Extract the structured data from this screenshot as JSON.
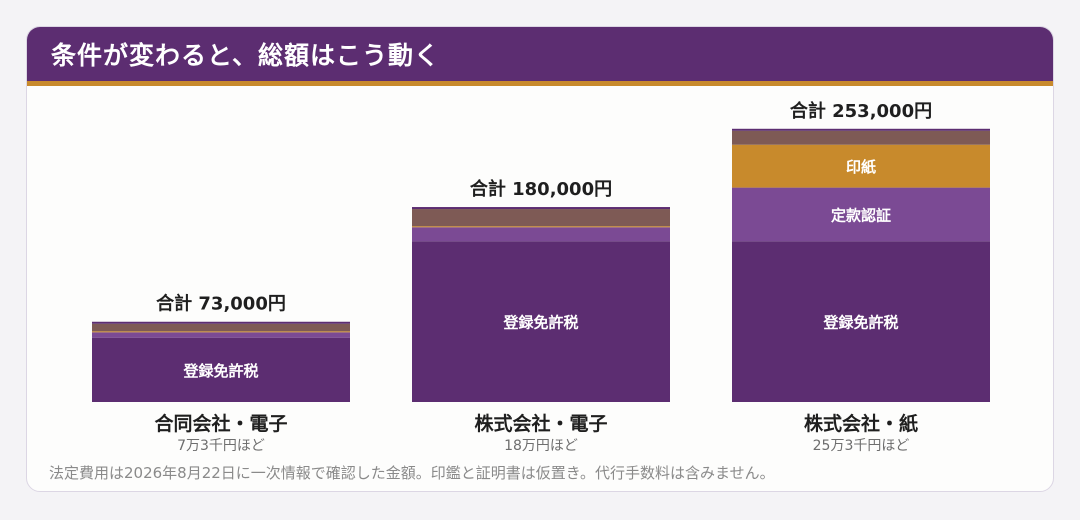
{
  "header": {
    "title": "条件が変わると、総額はこう動く"
  },
  "chart_data": {
    "type": "bar",
    "stacked": true,
    "categories": [
      "合同会社・電子",
      "株式会社・電子",
      "株式会社・紙"
    ],
    "category_sublabels": [
      "7万3千円ほど",
      "18万円ほど",
      "25万3千円ほど"
    ],
    "total_labels": [
      "合計 73,000円",
      "合計 180,000円",
      "合計 253,000円"
    ],
    "totals": [
      73000,
      180000,
      253000
    ],
    "series": [
      {
        "name": "登録免許税",
        "values": [
          60000,
          150000,
          150000
        ],
        "color": "#5c2d71",
        "text_color": "#ffffff"
      },
      {
        "name": "定款認証",
        "values": [
          5000,
          13000,
          50000
        ],
        "color": "#7b4a94",
        "text_color": "#ffffff"
      },
      {
        "name": "印紙",
        "values": [
          1000,
          1000,
          40000
        ],
        "color": "#c88a2c",
        "text_color": "#ffffff"
      },
      {
        "name": "",
        "values": [
          7000,
          16000,
          13000
        ],
        "color": "#7e5a55",
        "text_color": "#ffffff"
      }
    ]
  },
  "footer": {
    "note": "法定費用は2026年8月22日に一次情報で確認した金額。印鑑と証明書は仮置き。代行手数料は含みません。"
  }
}
